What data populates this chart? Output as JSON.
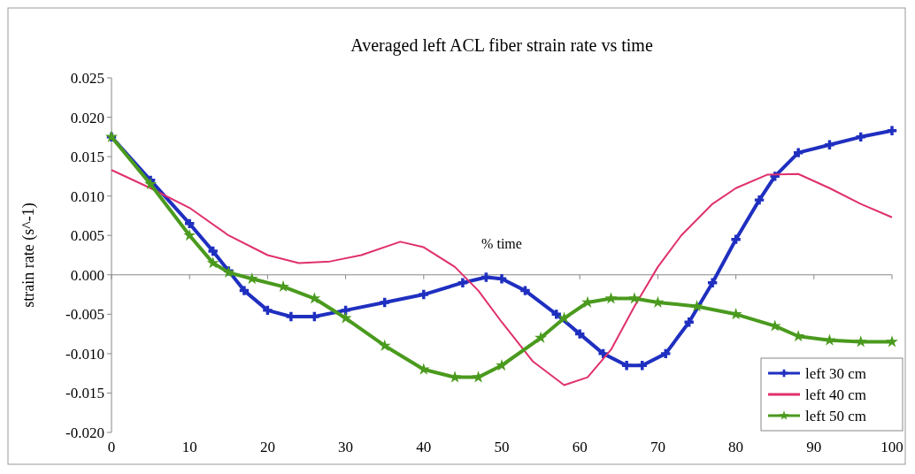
{
  "chart_data": {
    "type": "line",
    "title": "Averaged left ACL fiber strain rate vs time",
    "xlabel": "% time",
    "ylabel": "strain rate (s^-1)",
    "xlim": [
      0,
      100
    ],
    "xticks": [
      0,
      10,
      20,
      30,
      40,
      50,
      60,
      70,
      80,
      90,
      100
    ],
    "ylim": [
      -0.02,
      0.025
    ],
    "yticks": [
      {
        "value": -0.02,
        "label": "-0.020"
      },
      {
        "value": -0.015,
        "label": "-0.015"
      },
      {
        "value": -0.01,
        "label": "-0.010"
      },
      {
        "value": -0.005,
        "label": "-0.005"
      },
      {
        "value": 0,
        "label": "0.000"
      },
      {
        "value": 0.005,
        "label": "0.005"
      },
      {
        "value": 0.01,
        "label": "0.010"
      },
      {
        "value": 0.015,
        "label": "0.015"
      },
      {
        "value": 0.02,
        "label": "0.020"
      },
      {
        "value": 0.025,
        "label": "0.025"
      }
    ],
    "legend": "bottom right",
    "series": [
      {
        "name": "left 30 cm",
        "color": "#1f2fc0",
        "marker": "cross",
        "x": [
          0,
          5,
          10,
          13,
          15,
          17,
          20,
          23,
          26,
          30,
          35,
          40,
          45,
          48,
          50,
          53,
          57,
          60,
          63,
          66,
          68,
          71,
          74,
          77,
          80,
          83,
          85,
          88,
          92,
          96,
          100
        ],
        "values": [
          0.0175,
          0.012,
          0.0065,
          0.003,
          0.0005,
          -0.002,
          -0.0045,
          -0.0053,
          -0.0053,
          -0.0045,
          -0.0035,
          -0.0025,
          -0.001,
          -0.0003,
          -0.0005,
          -0.002,
          -0.005,
          -0.0075,
          -0.01,
          -0.0115,
          -0.0115,
          -0.01,
          -0.006,
          -0.001,
          0.0045,
          0.0095,
          0.0125,
          0.0155,
          0.0165,
          0.0175,
          0.0183
        ]
      },
      {
        "name": "left 40 cm",
        "color": "#e0306e",
        "marker": "none",
        "x": [
          0,
          5,
          10,
          15,
          20,
          24,
          28,
          32,
          37,
          40,
          44,
          47,
          50,
          54,
          58,
          61,
          64,
          67,
          70,
          73,
          77,
          80,
          84,
          88,
          92,
          96,
          100
        ],
        "values": [
          0.0133,
          0.011,
          0.0085,
          0.005,
          0.0025,
          0.0015,
          0.0017,
          0.0025,
          0.0042,
          0.0035,
          0.001,
          -0.002,
          -0.006,
          -0.011,
          -0.014,
          -0.013,
          -0.0095,
          -0.004,
          0.001,
          0.005,
          0.009,
          0.011,
          0.0127,
          0.0128,
          0.011,
          0.009,
          0.0073
        ]
      },
      {
        "name": "left 50 cm",
        "color": "#4a9a1e",
        "marker": "star",
        "x": [
          0,
          5,
          10,
          13,
          15,
          18,
          22,
          26,
          30,
          35,
          40,
          44,
          47,
          50,
          55,
          58,
          61,
          64,
          67,
          70,
          75,
          80,
          85,
          88,
          92,
          96,
          100
        ],
        "values": [
          0.0175,
          0.0115,
          0.005,
          0.0015,
          0.0003,
          -0.0005,
          -0.0015,
          -0.003,
          -0.0055,
          -0.009,
          -0.012,
          -0.013,
          -0.013,
          -0.0115,
          -0.008,
          -0.0055,
          -0.0035,
          -0.003,
          -0.003,
          -0.0035,
          -0.004,
          -0.005,
          -0.0065,
          -0.0078,
          -0.0083,
          -0.0085,
          -0.0085
        ]
      }
    ]
  }
}
